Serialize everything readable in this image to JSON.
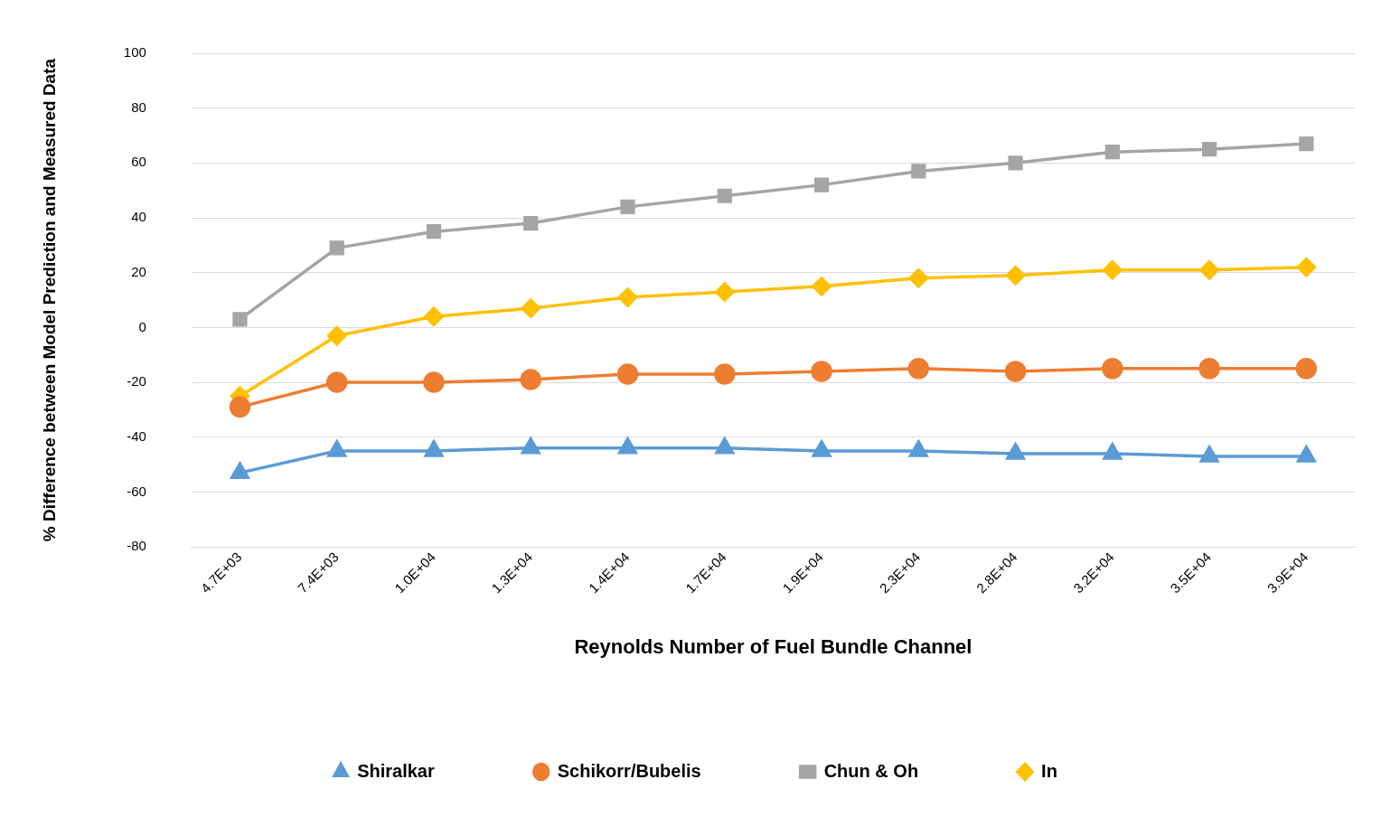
{
  "chart_data": {
    "type": "line",
    "xlabel": "Reynolds Number of Fuel Bundle Channel",
    "ylabel": "% Difference between Model Prediction and Measured Data",
    "categories": [
      "4.7E+03",
      "7.4E+03",
      "1.0E+04",
      "1.3E+04",
      "1.4E+04",
      "1.7E+04",
      "1.9E+04",
      "2.3E+04",
      "2.8E+04",
      "3.2E+04",
      "3.5E+04",
      "3.9E+04"
    ],
    "ylim": [
      -80,
      100
    ],
    "yticks": [
      -80,
      -60,
      -40,
      -20,
      0,
      20,
      40,
      60,
      80,
      100
    ],
    "grid": "y",
    "legend": "bottom",
    "line_style": "solid",
    "series": [
      {
        "name": "Shiralkar",
        "color": "#5b9bd5",
        "marker": "triangle",
        "values": [
          -53,
          -45,
          -45,
          -44,
          -44,
          -44,
          -45,
          -45,
          -46,
          -46,
          -47,
          -47
        ]
      },
      {
        "name": "Schikorr/Bubelis",
        "color": "#ed7d31",
        "marker": "circle",
        "values": [
          -29,
          -20,
          -20,
          -19,
          -17,
          -17,
          -16,
          -15,
          -16,
          -15,
          -15,
          -15
        ]
      },
      {
        "name": "Chun & Oh",
        "color": "#a5a5a5",
        "marker": "square",
        "values": [
          3,
          29,
          35,
          38,
          44,
          48,
          52,
          57,
          60,
          64,
          65,
          67
        ]
      },
      {
        "name": "In",
        "color": "#ffc000",
        "marker": "diamond",
        "values": [
          -25,
          -3,
          4,
          7,
          11,
          13,
          15,
          18,
          19,
          21,
          21,
          22
        ]
      }
    ]
  }
}
